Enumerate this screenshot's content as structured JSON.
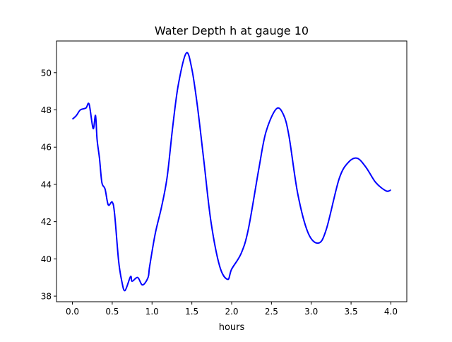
{
  "chart_data": {
    "type": "line",
    "title": "Water Depth h at gauge 10",
    "xlabel": "hours",
    "ylabel": "",
    "xlim": [
      -0.2,
      4.2
    ],
    "ylim": [
      37.7,
      51.7
    ],
    "xticks": [
      0.0,
      0.5,
      1.0,
      1.5,
      2.0,
      2.5,
      3.0,
      3.5,
      4.0
    ],
    "xtick_labels": [
      "0.0",
      "0.5",
      "1.0",
      "1.5",
      "2.0",
      "2.5",
      "3.0",
      "3.5",
      "4.0"
    ],
    "yticks": [
      38,
      40,
      42,
      44,
      46,
      48,
      50
    ],
    "ytick_labels": [
      "38",
      "40",
      "42",
      "44",
      "46",
      "48",
      "50"
    ],
    "grid": false,
    "series": [
      {
        "name": "h",
        "color": "#0000ff",
        "x": [
          0.0,
          0.05,
          0.1,
          0.17,
          0.21,
          0.26,
          0.29,
          0.31,
          0.34,
          0.37,
          0.41,
          0.45,
          0.5,
          0.53,
          0.58,
          0.62,
          0.66,
          0.73,
          0.75,
          0.82,
          0.88,
          0.95,
          0.97,
          1.04,
          1.12,
          1.19,
          1.26,
          1.33,
          1.43,
          1.5,
          1.57,
          1.65,
          1.74,
          1.85,
          1.95,
          2.0,
          2.12,
          2.21,
          2.34,
          2.43,
          2.56,
          2.65,
          2.72,
          2.83,
          2.96,
          3.09,
          3.19,
          3.35,
          3.47,
          3.58,
          3.69,
          3.81,
          3.94,
          4.0
        ],
        "y": [
          47.5,
          47.7,
          48.0,
          48.1,
          48.3,
          47.0,
          47.7,
          46.4,
          45.4,
          44.1,
          43.75,
          42.9,
          43.05,
          42.4,
          39.9,
          38.8,
          38.3,
          39.05,
          38.8,
          39.0,
          38.6,
          39.0,
          39.6,
          41.35,
          42.8,
          44.4,
          47.1,
          49.35,
          51.05,
          50.2,
          48.2,
          45.3,
          42.0,
          39.6,
          38.9,
          39.45,
          40.3,
          41.6,
          44.8,
          46.8,
          48.05,
          47.75,
          46.6,
          43.5,
          41.4,
          40.85,
          41.6,
          44.3,
          45.2,
          45.4,
          44.9,
          44.1,
          43.65,
          43.7
        ]
      }
    ]
  }
}
